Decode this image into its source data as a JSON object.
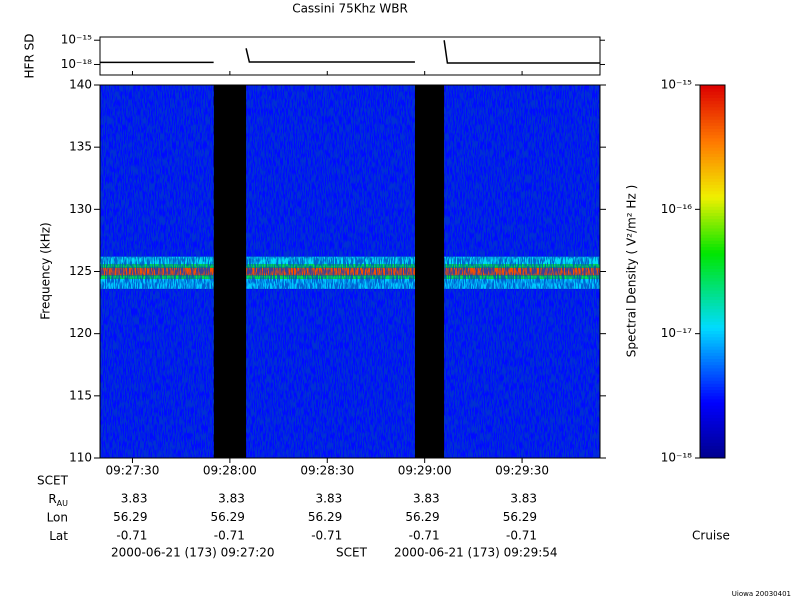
{
  "chart_data": {
    "type": "spectrogram",
    "title": "Cassini 75Khz WBR",
    "ylabel": "Frequency (kHz)",
    "xlim": [
      34040,
      34194
    ],
    "xticks": [
      {
        "value": 34050,
        "label": "09:27:30"
      },
      {
        "value": 34080,
        "label": "09:28:00"
      },
      {
        "value": 34110,
        "label": "09:28:30"
      },
      {
        "value": 34140,
        "label": "09:29:00"
      },
      {
        "value": 34170,
        "label": "09:29:30"
      }
    ],
    "ylim": [
      110,
      140
    ],
    "yticks": [
      110,
      115,
      120,
      125,
      130,
      135,
      140
    ],
    "spectrogram": {
      "segments": [
        [
          34040,
          34075
        ],
        [
          34085,
          34137
        ],
        [
          34146,
          34194
        ]
      ],
      "bins": [
        110,
        123.6,
        124.4,
        124.7,
        125.3,
        125.6,
        126.2,
        140
      ],
      "density": [
        3e-18,
        1e-17,
        3e-17,
        5e-16,
        3e-17,
        1.2e-17,
        3e-18
      ]
    },
    "colorbar": {
      "label": "Spectral Density ( V²/m² Hz )",
      "zlim": [
        1e-18,
        1e-15
      ],
      "log": true,
      "ticks": [
        {
          "value": 1e-15,
          "label": "10⁻¹⁵"
        },
        {
          "value": 1e-16,
          "label": "10⁻¹⁶"
        },
        {
          "value": 1e-17,
          "label": "10⁻¹⁷"
        },
        {
          "value": 1e-18,
          "label": "10⁻¹⁸"
        }
      ]
    },
    "hfr": {
      "ylabel": "HFR SD",
      "log": true,
      "ylim": [
        5e-20,
        2.5e-15
      ],
      "yticks": [
        {
          "value": 1e-15,
          "label": "10⁻¹⁵"
        },
        {
          "value": 1e-18,
          "label": "10⁻¹⁸"
        }
      ],
      "color": "#000000",
      "x": [
        34040,
        34075,
        34080,
        34085,
        34086,
        34137,
        34141,
        34146,
        34147,
        34194
      ],
      "values": [
        1.8e-18,
        1.8e-18,
        null,
        1e-16,
        2e-18,
        2e-18,
        null,
        1e-15,
        1.5e-18,
        1.5e-18
      ]
    },
    "ephemeris": {
      "rows": [
        {
          "label": "R",
          "subscript": "AU",
          "values": [
            3.83,
            3.83,
            3.83,
            3.83,
            3.83
          ]
        },
        {
          "label": "Lon",
          "values": [
            56.29,
            56.29,
            56.29,
            56.29,
            56.29
          ]
        },
        {
          "label": "Lat",
          "values": [
            -0.71,
            -0.71,
            -0.71,
            -0.71,
            -0.71
          ]
        }
      ],
      "scet_label": "SCET"
    },
    "footer": {
      "start": "2000-06-21 (173) 09:27:20",
      "middle": "SCET",
      "end": "2000-06-21 (173) 09:29:54"
    },
    "phase": "Cruise",
    "credit": "Uiowa 20030401"
  }
}
